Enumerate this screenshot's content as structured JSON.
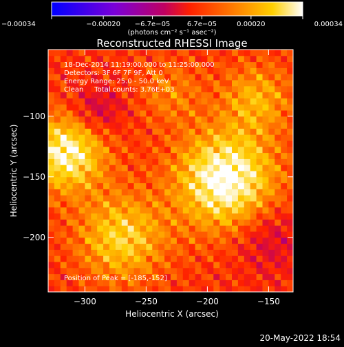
{
  "chart_data": {
    "type": "heatmap",
    "title": "Reconstructed RHESSI Image",
    "xlabel": "Heliocentric X (arcsec)",
    "ylabel": "Heliocentric Y (arcsec)",
    "xlim": [
      -330,
      -130
    ],
    "ylim": [
      -245,
      -45
    ],
    "x_ticks": [
      -300,
      -250,
      -200,
      -150
    ],
    "x_tick_labels": [
      "−300",
      "−250",
      "−200",
      "−150"
    ],
    "y_ticks": [
      -200,
      -150,
      -100
    ],
    "y_tick_labels": [
      "−200",
      "−150",
      "−100"
    ],
    "colorbar": {
      "range": [
        -0.00034,
        0.00034
      ],
      "ticks": [
        -0.00034,
        -0.0002,
        -6.7e-05,
        6.7e-05,
        0.0002,
        0.00034
      ],
      "tick_labels": [
        "−0.00034",
        "−0.00020",
        "−6.7e−05",
        "6.7e−05",
        "0.00020",
        "0.00034"
      ],
      "unit_label": "(photons cm⁻² s⁻¹ asec⁻²)",
      "colormap": [
        "#0000ff",
        "#7a00d8",
        "#c00060",
        "#ff2000",
        "#ff7a00",
        "#ffd000",
        "#ffffff"
      ]
    },
    "peak": {
      "x": -185,
      "y": -152
    },
    "sources": [
      {
        "x": -185,
        "y": -152,
        "peak": 0.00034,
        "sigma": 28
      },
      {
        "x": -315,
        "y": -130,
        "peak": 0.0003,
        "sigma": 22
      },
      {
        "x": -270,
        "y": -200,
        "peak": 0.00022,
        "sigma": 25
      },
      {
        "x": -160,
        "y": -85,
        "peak": 0.00016,
        "sigma": 20
      },
      {
        "x": -230,
        "y": -80,
        "peak": 0.0001,
        "sigma": 18
      }
    ],
    "negative_regions": [
      {
        "x": -290,
        "y": -95,
        "value": -0.00012,
        "sigma": 15
      },
      {
        "x": -150,
        "y": -200,
        "value": -0.0001,
        "sigma": 20
      }
    ]
  },
  "annotations": {
    "time_range": "18-Dec-2014 11:19:00.000 to 11:25:00.000",
    "detectors": "Detectors: 3F 6F 7F 9F, Att 0",
    "energy": "Energy Range: 25.0 - 50.0 keV",
    "method_counts": "Clean     Total counts: 3.76E+03",
    "peak_label": "Position of Peak = [-185,-152]"
  },
  "footer": {
    "date": "20-May-2022 18:54"
  }
}
